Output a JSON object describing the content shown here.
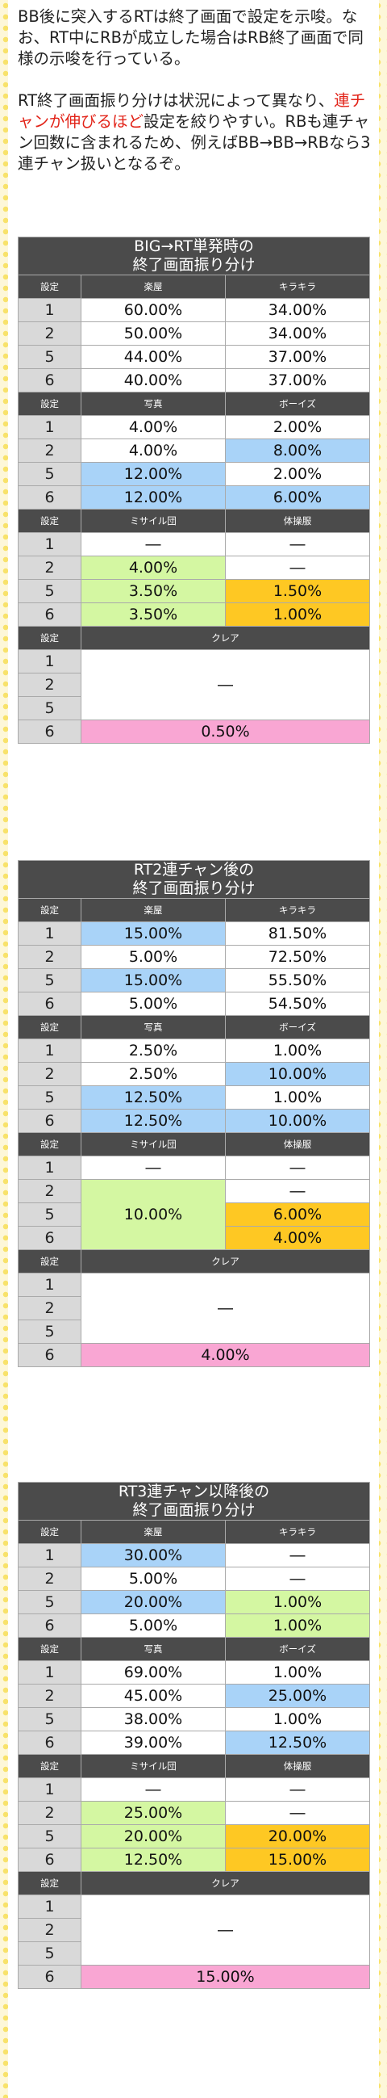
{
  "intro": {
    "p1": "BB後に突入するRTは終了画面で設定を示唆。なお、RT中にRBが成立した場合はRB終了画面で同様の示唆を行っている。",
    "p2_pre": "RT終了画面振り分けは状況によって異なり、",
    "p2_highlight": "連チャンが伸びるほど",
    "p2_post": "設定を絞りやすい。RBも連チャン回数に含まれるため、例えばBB→BB→RBなら3連チャン扱いとなるぞ。"
  },
  "common": {
    "setting": "設定",
    "gakuya": "楽屋",
    "kirakira": "キラキラ",
    "shashin": "写真",
    "boys": "ボーイズ",
    "missile": "ミサイル団",
    "taisou": "体操服",
    "clear": "クレア",
    "dash": "―",
    "s1": "1",
    "s2": "2",
    "s5": "5",
    "s6": "6"
  },
  "tables": [
    {
      "title1": "BIG→RT単発時の",
      "title2": "終了画面振り分け",
      "gakuya": [
        "60.00%",
        "50.00%",
        "44.00%",
        "40.00%"
      ],
      "kirakira": [
        "34.00%",
        "34.00%",
        "37.00%",
        "37.00%"
      ],
      "shashin": [
        "4.00%",
        "4.00%",
        "12.00%",
        "12.00%"
      ],
      "boys": [
        "2.00%",
        "8.00%",
        "2.00%",
        "6.00%"
      ],
      "missile": [
        "―",
        "4.00%",
        "3.50%",
        "3.50%"
      ],
      "taisou": [
        "―",
        "―",
        "1.50%",
        "1.00%"
      ],
      "clear": "0.50%"
    },
    {
      "title1": "RT2連チャン後の",
      "title2": "終了画面振り分け",
      "gakuya": [
        "15.00%",
        "5.00%",
        "15.00%",
        "5.00%"
      ],
      "kirakira": [
        "81.50%",
        "72.50%",
        "55.50%",
        "54.50%"
      ],
      "shashin": [
        "2.50%",
        "2.50%",
        "12.50%",
        "12.50%"
      ],
      "boys": [
        "1.00%",
        "10.00%",
        "1.00%",
        "10.00%"
      ],
      "missile": [
        "―",
        "10.00%"
      ],
      "taisou": [
        "―",
        "―",
        "6.00%",
        "4.00%"
      ],
      "clear": "4.00%"
    },
    {
      "title1": "RT3連チャン以降後の",
      "title2": "終了画面振り分け",
      "gakuya": [
        "30.00%",
        "5.00%",
        "20.00%",
        "5.00%"
      ],
      "kirakira": [
        "―",
        "―",
        "1.00%",
        "1.00%"
      ],
      "shashin": [
        "69.00%",
        "45.00%",
        "38.00%",
        "39.00%"
      ],
      "boys": [
        "1.00%",
        "25.00%",
        "1.00%",
        "12.50%"
      ],
      "missile": [
        "―",
        "25.00%",
        "20.00%",
        "12.50%"
      ],
      "taisou": [
        "―",
        "―",
        "20.00%",
        "15.00%"
      ],
      "clear": "15.00%"
    }
  ]
}
